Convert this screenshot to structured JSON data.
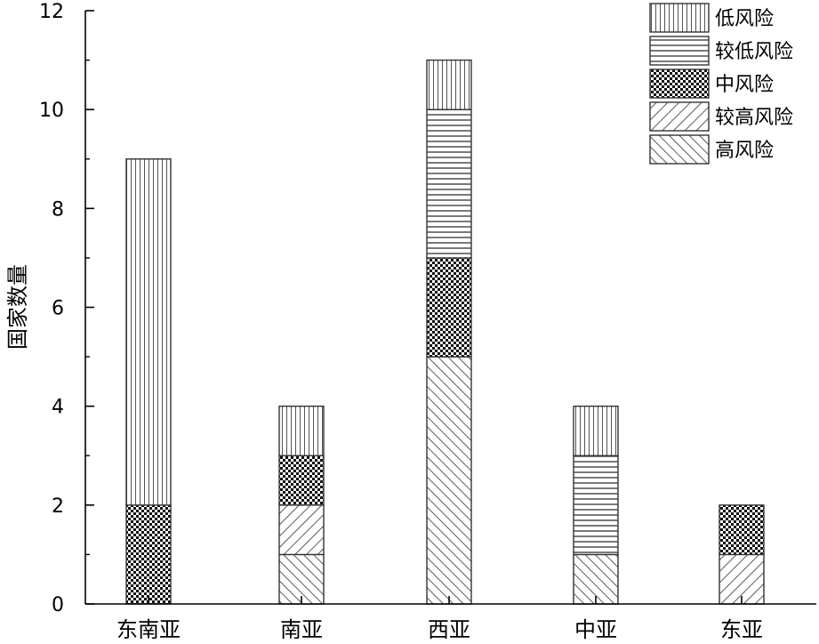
{
  "chart_data": {
    "type": "bar",
    "stacked": true,
    "title": "",
    "xlabel": "",
    "ylabel": "国家数量",
    "ylim": [
      0,
      12
    ],
    "yticks": [
      0,
      2,
      4,
      6,
      8,
      10,
      12
    ],
    "grid": false,
    "legend_position": "top-right",
    "categories": [
      "东南亚",
      "南亚",
      "西亚",
      "中亚",
      "东亚"
    ],
    "series": [
      {
        "name": "高风险",
        "pattern": "diag-up-dense",
        "values": [
          0,
          1,
          5,
          1,
          0
        ]
      },
      {
        "name": "较高风险",
        "pattern": "diag-down",
        "values": [
          0,
          1,
          0,
          0,
          1
        ]
      },
      {
        "name": "中风险",
        "pattern": "checker",
        "values": [
          2,
          1,
          2,
          0,
          1
        ]
      },
      {
        "name": "较低风险",
        "pattern": "horizontal",
        "values": [
          0,
          0,
          3,
          2,
          0
        ]
      },
      {
        "name": "低风险",
        "pattern": "vertical",
        "values": [
          7,
          1,
          1,
          1,
          0
        ]
      }
    ],
    "legend_order": [
      "低风险",
      "较低风险",
      "中风险",
      "较高风险",
      "高风险"
    ],
    "colors": {
      "stroke": "#333333",
      "background": "#ffffff",
      "axis": "#000000"
    }
  }
}
